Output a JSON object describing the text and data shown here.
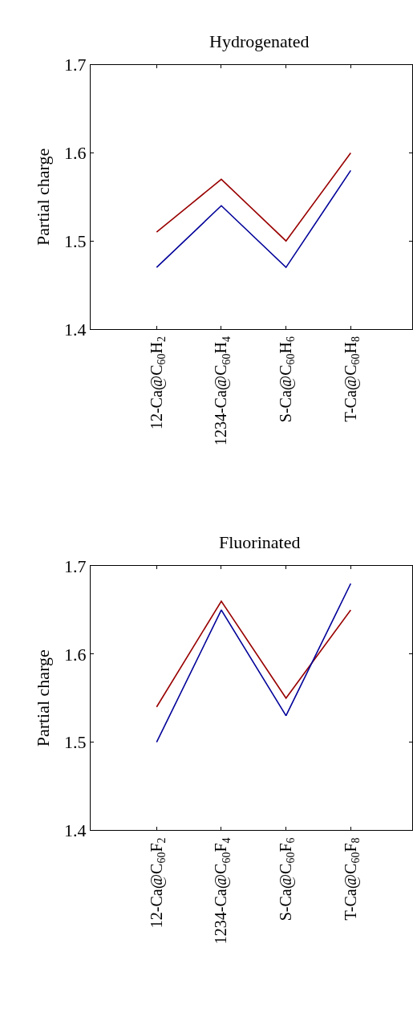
{
  "chart_data": [
    {
      "type": "line",
      "title": "Hydrogenated",
      "ylabel": "Partial charge",
      "categories": [
        "12-Ca@C$_{60}$H$_{2}$",
        "1234-Ca@C$_{60}$H$_{4}$",
        "S-Ca@C$_{60}$H$_{6}$",
        "T-Ca@C$_{60}$H$_{8}$"
      ],
      "series": [
        {
          "color": "#990000",
          "values": [
            1.51,
            1.57,
            1.5,
            1.6
          ]
        },
        {
          "color": "#000099",
          "values": [
            1.47,
            1.54,
            1.47,
            1.58
          ]
        }
      ],
      "ylim": [
        1.4,
        1.7
      ],
      "yticks": [
        1.4,
        1.5,
        1.6,
        1.7
      ],
      "grid": false,
      "marker": "none",
      "line_style": "solid"
    },
    {
      "type": "line",
      "title": "Fluorinated",
      "ylabel": "Partial charge",
      "categories": [
        "12-Ca@C$_{60}$F$_{2}$",
        "1234-Ca@C$_{60}$F$_{4}$",
        "S-Ca@C$_{60}$F$_{6}$",
        "T-Ca@C$_{60}$F$_{8}$"
      ],
      "series": [
        {
          "color": "#990000",
          "values": [
            1.54,
            1.66,
            1.55,
            1.65
          ]
        },
        {
          "color": "#000099",
          "values": [
            1.5,
            1.65,
            1.53,
            1.68
          ]
        }
      ],
      "ylim": [
        1.4,
        1.7
      ],
      "yticks": [
        1.4,
        1.5,
        1.6,
        1.7
      ],
      "grid": false,
      "marker": "none",
      "line_style": "solid"
    }
  ]
}
